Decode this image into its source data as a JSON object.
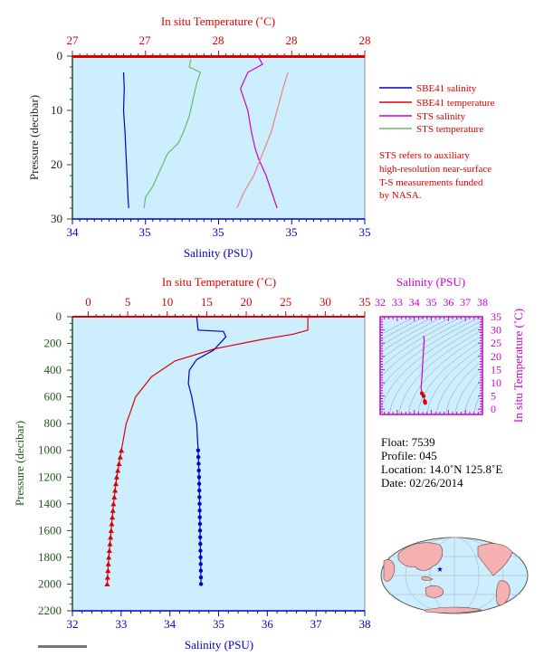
{
  "colors": {
    "blue": "#0000cc",
    "red": "#dd0000",
    "magenta": "#cc00cc",
    "green": "#66bb66",
    "pink": "#f08080",
    "panel_bg": "#cceeff",
    "dark_green_label": "#225522"
  },
  "top": {
    "title_top": "In situ Temperature (˚C)",
    "temp_ticks": [
      "27",
      "27",
      "28",
      "28",
      "28"
    ],
    "sal_ticks": [
      "34",
      "35",
      "35",
      "35",
      "35"
    ],
    "pressure_ticks": [
      "0",
      "10",
      "20",
      "30"
    ],
    "ylabel": "Pressure (decibar)",
    "xlabel": "Salinity (PSU)"
  },
  "legend": {
    "items": [
      {
        "label": "SBE41 salinity",
        "color": "#0000cc"
      },
      {
        "label": "SBE41 temperature",
        "color": "#dd0000"
      },
      {
        "label": "STS salinity",
        "color": "#cc00cc"
      },
      {
        "label": "STS temperature",
        "color": "#66bb66"
      }
    ],
    "note": [
      "STS refers to auxiliary",
      "high-resolution near-surface",
      "T-S measurements funded",
      "by NASA."
    ]
  },
  "bottom": {
    "title_top": "In situ Temperature (˚C)",
    "temp_ticks": [
      "0",
      "5",
      "10",
      "15",
      "20",
      "25",
      "30",
      "35"
    ],
    "sal_ticks": [
      "32",
      "33",
      "34",
      "35",
      "36",
      "37",
      "38"
    ],
    "pressure_ticks": [
      "0",
      "200",
      "400",
      "600",
      "800",
      "1000",
      "1200",
      "1400",
      "1600",
      "1800",
      "2000",
      "2200"
    ],
    "ylabel": "Pressure (decibar)",
    "xlabel": "Salinity (PSU)"
  },
  "ts": {
    "title": "Salinity (PSU)",
    "sal_ticks": [
      "32",
      "33",
      "34",
      "35",
      "36",
      "37",
      "38"
    ],
    "temp_ticks": [
      "0",
      "5",
      "10",
      "15",
      "20",
      "25",
      "30",
      "35"
    ],
    "ylabel": "In situ Temperature (˚C)"
  },
  "info": {
    "float": "Float:  7539",
    "profile": "Profile:  045",
    "location": "Location:  14.0˚N  125.8˚E",
    "date": "Date:  02/26/2014"
  },
  "chart_data": [
    {
      "type": "line",
      "name": "top-profile",
      "title": "In situ Temperature (˚C)",
      "xlabel": "Salinity (PSU)",
      "ylabel": "Pressure (decibar)",
      "ylim": [
        30,
        0
      ],
      "series": [
        {
          "name": "SBE41 salinity",
          "points": [
            [
              34.7,
              3
            ],
            [
              34.71,
              6
            ],
            [
              34.7,
              10
            ],
            [
              34.72,
              14
            ],
            [
              34.73,
              17
            ],
            [
              34.74,
              20
            ],
            [
              34.75,
              23
            ],
            [
              34.76,
              26
            ],
            [
              34.77,
              28
            ]
          ]
        },
        {
          "name": "STS temperature",
          "points": [
            [
              35.62,
              0.5
            ],
            [
              35.6,
              2
            ],
            [
              35.75,
              3
            ],
            [
              35.7,
              5
            ],
            [
              35.65,
              8
            ],
            [
              35.6,
              11
            ],
            [
              35.52,
              14
            ],
            [
              35.45,
              16
            ],
            [
              35.3,
              18
            ],
            [
              35.2,
              21
            ],
            [
              35.1,
              24
            ],
            [
              35.0,
              26
            ],
            [
              34.98,
              28
            ]
          ]
        },
        {
          "name": "STS salinity",
          "points": [
            [
              36.55,
              0.3
            ],
            [
              36.6,
              1.5
            ],
            [
              36.4,
              3
            ],
            [
              36.3,
              6
            ],
            [
              36.4,
              10
            ],
            [
              36.45,
              14
            ],
            [
              36.5,
              17
            ],
            [
              36.55,
              19
            ],
            [
              36.65,
              22
            ],
            [
              36.75,
              26
            ],
            [
              36.8,
              28
            ]
          ]
        },
        {
          "name": "SBE41 temperature",
          "points": [
            [
              36.95,
              3
            ],
            [
              36.88,
              6
            ],
            [
              36.8,
              10
            ],
            [
              36.72,
              14
            ],
            [
              36.6,
              18
            ],
            [
              36.48,
              22
            ],
            [
              36.35,
              25
            ],
            [
              36.25,
              28
            ]
          ]
        }
      ]
    },
    {
      "type": "line",
      "name": "bottom-profile",
      "title": "In situ Temperature (˚C)",
      "xlabel": "Salinity (PSU)",
      "ylabel": "Pressure (decibar)",
      "xlim_salinity": [
        32,
        38
      ],
      "xlim_temperature": [
        -2,
        35
      ],
      "ylim": [
        2200,
        0
      ],
      "series": [
        {
          "name": "SBE41 salinity",
          "points": [
            [
              34.55,
              0
            ],
            [
              34.58,
              100
            ],
            [
              35.1,
              110
            ],
            [
              35.15,
              150
            ],
            [
              34.9,
              250
            ],
            [
              34.55,
              320
            ],
            [
              34.4,
              400
            ],
            [
              34.38,
              500
            ],
            [
              34.45,
              600
            ],
            [
              34.55,
              800
            ],
            [
              34.58,
              1000
            ],
            [
              34.6,
              1200
            ],
            [
              34.61,
              1400
            ],
            [
              34.62,
              1600
            ],
            [
              34.63,
              1800
            ],
            [
              34.64,
              2000
            ]
          ],
          "markers_from_pressure": 1000
        },
        {
          "name": "SBE41 temperature",
          "points": [
            [
              27.8,
              0
            ],
            [
              27.8,
              100
            ],
            [
              26.0,
              130
            ],
            [
              22.0,
              170
            ],
            [
              16.0,
              240
            ],
            [
              11.0,
              330
            ],
            [
              8.0,
              450
            ],
            [
              6.0,
              600
            ],
            [
              5.3,
              720
            ],
            [
              4.8,
              800
            ],
            [
              4.2,
              1000
            ],
            [
              3.6,
              1200
            ],
            [
              3.2,
              1400
            ],
            [
              2.9,
              1600
            ],
            [
              2.6,
              1800
            ],
            [
              2.4,
              2000
            ]
          ],
          "markers_from_pressure": 1000
        }
      ]
    },
    {
      "type": "scatter",
      "name": "ts-diagram",
      "title": "Salinity (PSU)",
      "ylabel": "In situ Temperature (˚C)",
      "xlim": [
        32,
        38
      ],
      "ylim": [
        -2,
        35
      ],
      "series": [
        {
          "name": "T-S",
          "points": [
            [
              34.55,
              27.8
            ],
            [
              34.58,
              26
            ],
            [
              34.5,
              18
            ],
            [
              34.45,
              12
            ],
            [
              34.4,
              8
            ],
            [
              34.45,
              6
            ],
            [
              34.55,
              5
            ],
            [
              34.62,
              3
            ],
            [
              34.64,
              2.4
            ]
          ]
        }
      ]
    }
  ]
}
